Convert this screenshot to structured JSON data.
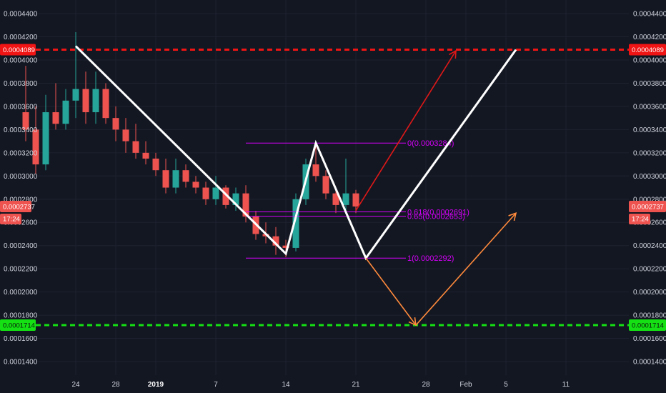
{
  "chart_data": {
    "type": "candlestick",
    "y_axis": {
      "ticks": [
        "0.0001400",
        "0.0001600",
        "0.0001800",
        "0.0002000",
        "0.0002200",
        "0.0002400",
        "0.0002600",
        "0.0002800",
        "0.0003000",
        "0.0003200",
        "0.0003400",
        "0.0003600",
        "0.0003800",
        "0.0004000",
        "0.0004200",
        "0.0004400"
      ],
      "range": [
        0.000128,
        0.000447
      ],
      "sides": "both"
    },
    "x_axis": {
      "ticks": [
        {
          "label": "24",
          "date": "2018-12-24"
        },
        {
          "label": "28",
          "date": "2018-12-28"
        },
        {
          "label": "2019",
          "date": "2019-01-01",
          "bold": true
        },
        {
          "label": "7",
          "date": "2019-01-07"
        },
        {
          "label": "14",
          "date": "2019-01-14"
        },
        {
          "label": "21",
          "date": "2019-01-21"
        },
        {
          "label": "28",
          "date": "2019-01-28"
        },
        {
          "label": "Feb",
          "date": "2019-02-01"
        },
        {
          "label": "5",
          "date": "2019-02-05"
        },
        {
          "label": "11",
          "date": "2019-02-11"
        }
      ]
    },
    "horizontal_levels": [
      {
        "price": 0.0004089,
        "label": "0.0004089",
        "color": "#f01414",
        "style": "dashed"
      },
      {
        "price": 0.0001714,
        "label": "0.0001714",
        "color": "#14e014",
        "style": "dashed"
      }
    ],
    "last_price": {
      "label": "0.0002737",
      "countdown": "17:24",
      "color": "#ef5350"
    },
    "fibonacci": {
      "color": "#d500f9",
      "levels": [
        {
          "ratio_label": "0",
          "price": 0.0003284
        },
        {
          "ratio_label": "0.618",
          "price": 0.0002691
        },
        {
          "ratio_label": "0.65",
          "price": 0.0002653
        },
        {
          "ratio_label": "1",
          "price": 0.0002292
        }
      ],
      "start_date": "2019-01-10",
      "end_date": "2019-01-26"
    },
    "pattern_line": {
      "color": "#ffffff",
      "points": [
        {
          "date": "2018-12-24",
          "price": 0.000412
        },
        {
          "date": "2019-01-14",
          "price": 0.000233
        },
        {
          "date": "2019-01-17",
          "price": 0.0003284
        },
        {
          "date": "2019-01-22",
          "price": 0.0002292
        },
        {
          "date": "2019-02-06",
          "price": 0.0004089
        }
      ]
    },
    "projection_arrows": [
      {
        "color": "#e01818",
        "from": {
          "date": "2019-01-21",
          "price": 0.0002702
        },
        "to": {
          "date": "2019-01-31",
          "price": 0.000408
        }
      },
      {
        "color": "#ff8a3c",
        "from": {
          "date": "2019-01-22",
          "price": 0.0002292
        },
        "to": {
          "date": "2019-01-27",
          "price": 0.0001714
        }
      },
      {
        "color": "#ff8a3c",
        "from": {
          "date": "2019-01-27",
          "price": 0.0001714
        },
        "to": {
          "date": "2019-02-06",
          "price": 0.000268
        }
      }
    ],
    "candles": [
      {
        "date": "2018-12-19",
        "o": 0.000355,
        "h": 0.000395,
        "l": 0.00033,
        "c": 0.00034
      },
      {
        "date": "2018-12-20",
        "o": 0.00034,
        "h": 0.00036,
        "l": 0.000302,
        "c": 0.00031
      },
      {
        "date": "2018-12-21",
        "o": 0.00031,
        "h": 0.00037,
        "l": 0.000305,
        "c": 0.000355
      },
      {
        "date": "2018-12-22",
        "o": 0.000355,
        "h": 0.00038,
        "l": 0.00034,
        "c": 0.000345
      },
      {
        "date": "2018-12-23",
        "o": 0.000345,
        "h": 0.000375,
        "l": 0.00034,
        "c": 0.000365
      },
      {
        "date": "2018-12-24",
        "o": 0.000365,
        "h": 0.000424,
        "l": 0.00035,
        "c": 0.000375
      },
      {
        "date": "2018-12-25",
        "o": 0.000375,
        "h": 0.00039,
        "l": 0.000345,
        "c": 0.000355
      },
      {
        "date": "2018-12-26",
        "o": 0.000355,
        "h": 0.00039,
        "l": 0.000345,
        "c": 0.000375
      },
      {
        "date": "2018-12-27",
        "o": 0.000375,
        "h": 0.00038,
        "l": 0.000345,
        "c": 0.00035
      },
      {
        "date": "2018-12-28",
        "o": 0.00035,
        "h": 0.00036,
        "l": 0.00033,
        "c": 0.00034
      },
      {
        "date": "2018-12-29",
        "o": 0.00034,
        "h": 0.00035,
        "l": 0.00032,
        "c": 0.00033
      },
      {
        "date": "2018-12-30",
        "o": 0.00033,
        "h": 0.000345,
        "l": 0.000315,
        "c": 0.00032
      },
      {
        "date": "2018-12-31",
        "o": 0.00032,
        "h": 0.00033,
        "l": 0.00031,
        "c": 0.000315
      },
      {
        "date": "2019-01-01",
        "o": 0.000315,
        "h": 0.00032,
        "l": 0.0003,
        "c": 0.000305
      },
      {
        "date": "2019-01-02",
        "o": 0.000305,
        "h": 0.000315,
        "l": 0.000285,
        "c": 0.00029
      },
      {
        "date": "2019-01-03",
        "o": 0.00029,
        "h": 0.000315,
        "l": 0.000285,
        "c": 0.000305
      },
      {
        "date": "2019-01-04",
        "o": 0.000305,
        "h": 0.00031,
        "l": 0.00029,
        "c": 0.000295
      },
      {
        "date": "2019-01-05",
        "o": 0.000295,
        "h": 0.0003,
        "l": 0.000285,
        "c": 0.00029
      },
      {
        "date": "2019-01-06",
        "o": 0.00029,
        "h": 0.000295,
        "l": 0.000275,
        "c": 0.00028
      },
      {
        "date": "2019-01-07",
        "o": 0.00028,
        "h": 0.0003,
        "l": 0.000275,
        "c": 0.00029
      },
      {
        "date": "2019-01-08",
        "o": 0.00029,
        "h": 0.000292,
        "l": 0.000272,
        "c": 0.000275
      },
      {
        "date": "2019-01-09",
        "o": 0.000275,
        "h": 0.00029,
        "l": 0.00027,
        "c": 0.000285
      },
      {
        "date": "2019-01-10",
        "o": 0.000285,
        "h": 0.000292,
        "l": 0.00026,
        "c": 0.000265
      },
      {
        "date": "2019-01-11",
        "o": 0.000265,
        "h": 0.00027,
        "l": 0.000245,
        "c": 0.00025
      },
      {
        "date": "2019-01-12",
        "o": 0.00025,
        "h": 0.00026,
        "l": 0.000242,
        "c": 0.000248
      },
      {
        "date": "2019-01-13",
        "o": 0.000248,
        "h": 0.000256,
        "l": 0.000232,
        "c": 0.00024
      },
      {
        "date": "2019-01-14",
        "o": 0.00024,
        "h": 0.000245,
        "l": 0.00023,
        "c": 0.000238
      },
      {
        "date": "2019-01-15",
        "o": 0.000238,
        "h": 0.000285,
        "l": 0.000235,
        "c": 0.00028
      },
      {
        "date": "2019-01-16",
        "o": 0.00028,
        "h": 0.000315,
        "l": 0.000275,
        "c": 0.00031
      },
      {
        "date": "2019-01-17",
        "o": 0.00031,
        "h": 0.000328,
        "l": 0.000295,
        "c": 0.0003
      },
      {
        "date": "2019-01-18",
        "o": 0.0003,
        "h": 0.000305,
        "l": 0.00028,
        "c": 0.000285
      },
      {
        "date": "2019-01-19",
        "o": 0.000285,
        "h": 0.00029,
        "l": 0.000268,
        "c": 0.000275
      },
      {
        "date": "2019-01-20",
        "o": 0.000275,
        "h": 0.000315,
        "l": 0.00027,
        "c": 0.000285
      },
      {
        "date": "2019-01-21",
        "o": 0.000285,
        "h": 0.000288,
        "l": 0.000268,
        "c": 0.0002737
      }
    ]
  }
}
